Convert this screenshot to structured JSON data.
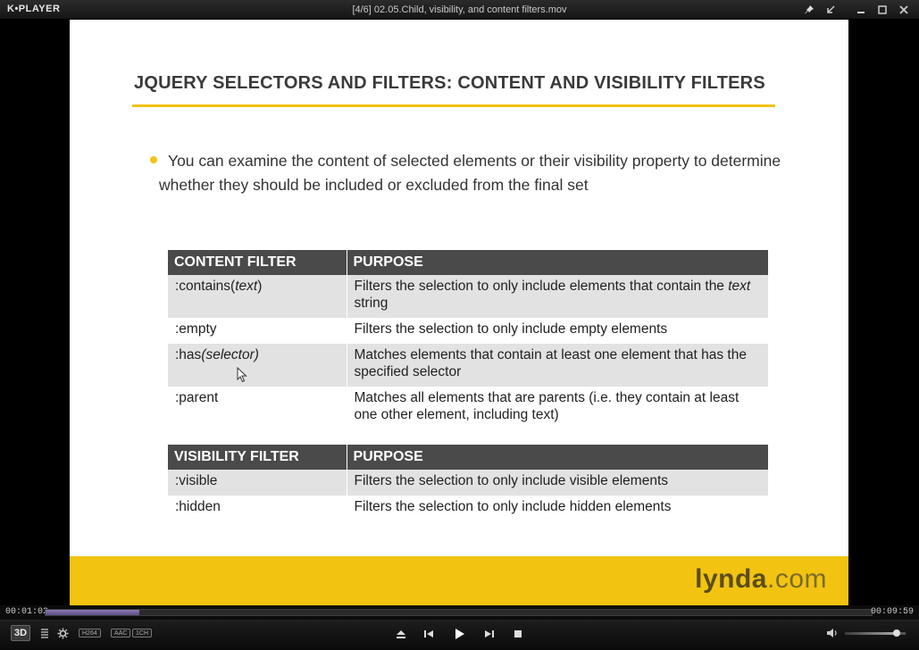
{
  "window": {
    "app_logo": "K•PLAYER",
    "title": "[4/6] 02.05.Child, visibility, and content filters.mov",
    "controls": [
      "pin-icon",
      "mini-icon",
      "minimize-icon",
      "maximize-icon",
      "close-icon"
    ]
  },
  "slide": {
    "title": "JQUERY SELECTORS AND FILTERS: CONTENT AND VISIBILITY FILTERS",
    "bullet": "You can examine the content of selected elements or their visibility property to determine whether they should be included or excluded from the final set",
    "content_table": {
      "headers": [
        "CONTENT FILTER",
        "PURPOSE"
      ],
      "rows": [
        {
          "filter_prefix": ":contains(",
          "filter_italic": "text",
          "filter_suffix": ")",
          "purpose_prefix": "Filters the selection to only include elements that contain the ",
          "purpose_italic": "text",
          "purpose_suffix": " string"
        },
        {
          "filter_prefix": ":empty",
          "filter_italic": "",
          "filter_suffix": "",
          "purpose_prefix": "Filters the selection to only include empty elements",
          "purpose_italic": "",
          "purpose_suffix": ""
        },
        {
          "filter_prefix": ":has",
          "filter_italic": "(selector)",
          "filter_suffix": "",
          "purpose_prefix": "Matches elements that contain at least one element that has the specified selector",
          "purpose_italic": "",
          "purpose_suffix": ""
        },
        {
          "filter_prefix": ":parent",
          "filter_italic": "",
          "filter_suffix": "",
          "purpose_prefix": "Matches all elements that are parents (i.e. they contain at least one other element, including text)",
          "purpose_italic": "",
          "purpose_suffix": ""
        }
      ]
    },
    "visibility_table": {
      "headers": [
        "VISIBILITY FILTER",
        "PURPOSE"
      ],
      "rows": [
        {
          "filter": ":visible",
          "purpose": "Filters the selection to only include visible elements"
        },
        {
          "filter": ":hidden",
          "purpose": "Filters the selection to only include hidden elements"
        }
      ]
    },
    "brand_main": "lynda",
    "brand_suffix": ".com",
    "accent_color": "#f2c311"
  },
  "player": {
    "current_time": "00:01:02",
    "duration": "00:09:59",
    "progress": 0.113,
    "btn_3d": "3D",
    "badges": [
      "H264",
      "AAC",
      "1CH"
    ],
    "volume": 0.85
  }
}
